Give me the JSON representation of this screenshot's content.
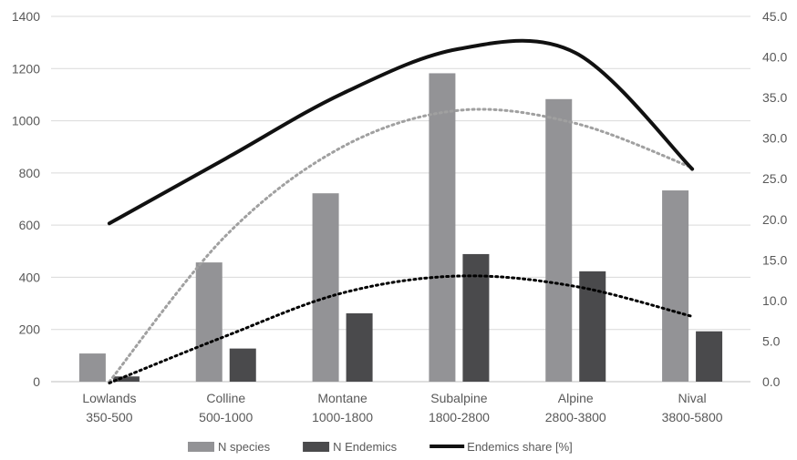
{
  "chart_data": {
    "type": "bar",
    "categories": [
      [
        "Lowlands",
        "350-500"
      ],
      [
        "Colline",
        "500-1000"
      ],
      [
        "Montane",
        "1000-1800"
      ],
      [
        "Subalpine",
        "1800-2800"
      ],
      [
        "Alpine",
        "2800-3800"
      ],
      [
        "Nival",
        "3800-5800"
      ]
    ],
    "series": [
      {
        "name": "N species",
        "type": "bar",
        "axis": "left",
        "color": "#939396",
        "values": [
          108,
          457,
          722,
          1182,
          1083,
          733
        ]
      },
      {
        "name": "N Endemics",
        "type": "bar",
        "axis": "left",
        "color": "#4a4a4c",
        "values": [
          20,
          127,
          262,
          489,
          423,
          193
        ]
      },
      {
        "name": "Endemics share [%]",
        "type": "line",
        "axis": "right",
        "color": "#111111",
        "values": [
          19.5,
          27.5,
          35.5,
          41.0,
          40.5,
          26.2
        ]
      }
    ],
    "trendlines": [
      {
        "of": "N species",
        "style": "dotted",
        "color": "#a0a0a0",
        "values": [
          0,
          560,
          900,
          1040,
          990,
          820
        ]
      },
      {
        "of": "N Endemics",
        "style": "dotted",
        "color": "#000000",
        "values": [
          -5,
          175,
          340,
          405,
          365,
          250
        ]
      }
    ],
    "y_left": {
      "min": 0,
      "max": 1400,
      "ticks": [
        "0",
        "200",
        "400",
        "600",
        "800",
        "1000",
        "1200",
        "1400"
      ]
    },
    "y_right": {
      "min": 0,
      "max": 45,
      "ticks": [
        "0.0",
        "5.0",
        "10.0",
        "15.0",
        "20.0",
        "25.0",
        "30.0",
        "35.0",
        "40.0",
        "45.0"
      ]
    },
    "grid": true,
    "legend_position": "bottom",
    "title": "",
    "xlabel": "",
    "ylabel": ""
  }
}
